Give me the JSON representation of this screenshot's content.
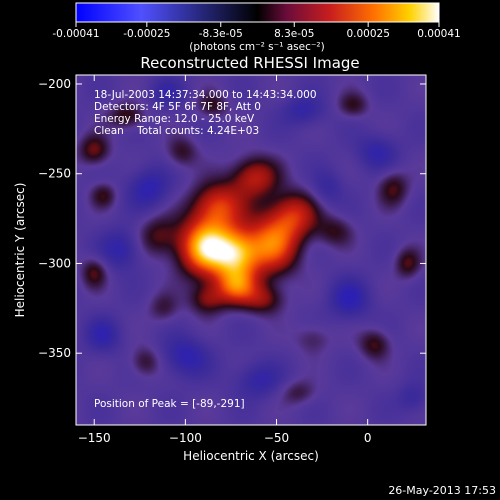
{
  "chart_data": {
    "type": "heatmap",
    "title": "Reconstructed RHESSI Image",
    "xlabel": "Heliocentric X (arcsec)",
    "ylabel": "Heliocentric Y (arcsec)",
    "xlim": [
      -160,
      32
    ],
    "ylim": [
      -390,
      -195
    ],
    "x_ticks": [
      -150,
      -100,
      -50,
      0
    ],
    "y_ticks": [
      -200,
      -250,
      -300,
      -350
    ],
    "colorbar": {
      "range": [
        -0.00041,
        0.00041
      ],
      "tick_values": [
        -0.00041,
        -0.00025,
        -8.3e-05,
        8.3e-05,
        0.00025,
        0.00041
      ],
      "tick_labels": [
        "-0.00041",
        "-0.00025",
        "-8.3e-05",
        "8.3e-05",
        "0.00025",
        "0.00041"
      ],
      "unit_label": "(photons cm⁻² s⁻¹ asec⁻²)",
      "colors": [
        "#0000ff",
        "#5050ff",
        "#000000",
        "#6a0c3a",
        "#c81e1e",
        "#ff7000",
        "#ffd200",
        "#ffffff"
      ]
    },
    "info_lines": [
      "18-Jul-2003 14:37:34.000 to 14:43:34.000",
      "Detectors: 4F 5F 6F 7F 8F, Att 0",
      "Energy Range: 12.0 - 25.0 keV",
      "Clean    Total counts: 4.24E+03"
    ],
    "peak_label": "Position of Peak = [-89,-291]",
    "peak": {
      "x": -89,
      "y": -291
    },
    "sources": [
      {
        "x": -89,
        "y": -291,
        "sx": 10,
        "sy": 11,
        "amp": 1.0
      },
      {
        "x": -72,
        "y": -295,
        "sx": 9,
        "sy": 10,
        "amp": 0.85
      },
      {
        "x": -52,
        "y": -289,
        "sx": 10,
        "sy": 12,
        "amp": 0.72
      },
      {
        "x": -82,
        "y": -268,
        "sx": 10,
        "sy": 9,
        "amp": 0.6
      },
      {
        "x": -62,
        "y": -252,
        "sx": 9,
        "sy": 8,
        "amp": 0.5
      },
      {
        "x": -40,
        "y": -273,
        "sx": 9,
        "sy": 9,
        "amp": 0.5
      },
      {
        "x": -72,
        "y": -313,
        "sx": 8,
        "sy": 7,
        "amp": 0.6
      },
      {
        "x": -88,
        "y": -320,
        "sx": 7,
        "sy": 6,
        "amp": 0.35
      },
      {
        "x": -57,
        "y": -320,
        "sx": 8,
        "sy": 6,
        "amp": 0.35
      },
      {
        "x": -115,
        "y": -285,
        "sx": 8,
        "sy": 8,
        "amp": 0.3
      },
      {
        "x": -150,
        "y": -237,
        "sx": 6,
        "sy": 6,
        "amp": 0.35
      },
      {
        "x": -150,
        "y": -305,
        "sx": 5,
        "sy": 6,
        "amp": 0.3
      },
      {
        "x": -102,
        "y": -238,
        "sx": 6,
        "sy": 6,
        "amp": 0.25
      },
      {
        "x": -132,
        "y": -218,
        "sx": 7,
        "sy": 5,
        "amp": 0.3
      },
      {
        "x": -85,
        "y": -212,
        "sx": 6,
        "sy": 5,
        "amp": 0.25
      },
      {
        "x": 14,
        "y": -258,
        "sx": 6,
        "sy": 7,
        "amp": 0.3
      },
      {
        "x": -18,
        "y": -282,
        "sx": 7,
        "sy": 6,
        "amp": 0.25
      },
      {
        "x": 22,
        "y": -300,
        "sx": 5,
        "sy": 6,
        "amp": 0.3
      },
      {
        "x": 4,
        "y": -345,
        "sx": 6,
        "sy": 6,
        "amp": 0.3
      },
      {
        "x": -122,
        "y": -355,
        "sx": 6,
        "sy": 6,
        "amp": 0.25
      },
      {
        "x": -38,
        "y": -372,
        "sx": 7,
        "sy": 5,
        "amp": 0.2
      },
      {
        "x": -8,
        "y": -212,
        "sx": 6,
        "sy": 5,
        "amp": 0.25
      },
      {
        "x": -30,
        "y": -342,
        "sx": 7,
        "sy": 6,
        "amp": 0.18
      },
      {
        "x": -112,
        "y": -325,
        "sx": 6,
        "sy": 6,
        "amp": 0.2
      },
      {
        "x": -145,
        "y": -262,
        "sx": 5,
        "sy": 5,
        "amp": 0.25
      },
      {
        "x": -120,
        "y": -258,
        "sx": 8,
        "sy": 8,
        "amp": -0.3
      },
      {
        "x": -135,
        "y": -292,
        "sx": 8,
        "sy": 8,
        "amp": -0.28
      },
      {
        "x": -100,
        "y": -352,
        "sx": 9,
        "sy": 8,
        "amp": -0.3
      },
      {
        "x": -60,
        "y": -365,
        "sx": 9,
        "sy": 7,
        "amp": -0.25
      },
      {
        "x": -10,
        "y": -320,
        "sx": 8,
        "sy": 8,
        "amp": -0.3
      },
      {
        "x": 5,
        "y": -238,
        "sx": 8,
        "sy": 7,
        "amp": -0.25
      },
      {
        "x": -35,
        "y": -215,
        "sx": 8,
        "sy": 6,
        "amp": -0.25
      },
      {
        "x": -110,
        "y": -205,
        "sx": 7,
        "sy": 6,
        "amp": -0.2
      },
      {
        "x": -145,
        "y": -340,
        "sx": 7,
        "sy": 7,
        "amp": -0.25
      },
      {
        "x": -22,
        "y": -258,
        "sx": 6,
        "sy": 7,
        "amp": -0.2
      },
      {
        "x": 25,
        "y": -375,
        "sx": 6,
        "sy": 6,
        "amp": -0.2
      }
    ]
  },
  "timestamp": "26-May-2013 17:53"
}
